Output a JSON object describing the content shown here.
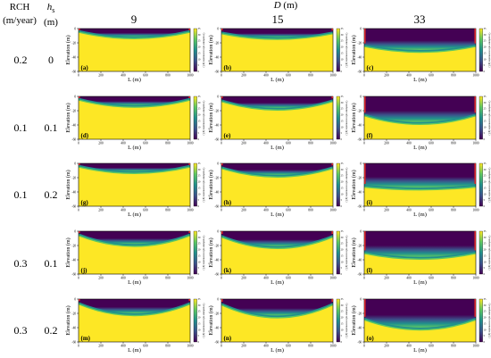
{
  "header": {
    "rch_label": "RCH",
    "rch_unit": "(m/year)",
    "hs_label": "h",
    "hs_sub": "s",
    "hs_unit": "(m)",
    "d_label": "D",
    "d_unit": "(m)",
    "d_values": [
      "9",
      "15",
      "33"
    ]
  },
  "rows": [
    {
      "rch": "0.2",
      "hs": "0"
    },
    {
      "rch": "0.1",
      "hs": "0.1"
    },
    {
      "rch": "0.1",
      "hs": "0.2"
    },
    {
      "rch": "0.3",
      "hs": "0.1"
    },
    {
      "rch": "0.3",
      "hs": "0.2"
    }
  ],
  "colors": {
    "fresh": "#440154",
    "saline": "#fde725",
    "ramp": [
      "#440154",
      "#3b528b",
      "#21918c",
      "#5ec962",
      "#fde725"
    ],
    "boundary": "#d62728"
  },
  "chart_data": {
    "type": "heatmap",
    "description_axes": {
      "xlabel": "L (m)",
      "ylabel": "Elevation (m)",
      "xlim": [
        0,
        1000
      ],
      "ylim": [
        -60,
        0
      ],
      "xticks": [
        0,
        200,
        400,
        600,
        800,
        1000
      ],
      "yticks": [
        0,
        -20,
        -40,
        -60
      ]
    },
    "colorbar": {
      "label": "Groundwater salt concentration (g/L)",
      "ticks": [
        0,
        5,
        10,
        15,
        20,
        25,
        30,
        35
      ]
    },
    "panels": [
      {
        "label": "(a)",
        "rch": 0.2,
        "hs": 0,
        "D": 9,
        "lens_depth": 11,
        "edge_depth": 2
      },
      {
        "label": "(b)",
        "rch": 0.2,
        "hs": 0,
        "D": 15,
        "lens_depth": 12,
        "edge_depth": 4
      },
      {
        "label": "(c)",
        "rch": 0.2,
        "hs": 0,
        "D": 33,
        "lens_depth": 30,
        "edge_depth": 22
      },
      {
        "label": "(d)",
        "rch": 0.1,
        "hs": 0.1,
        "D": 9,
        "lens_depth": 12,
        "edge_depth": 2
      },
      {
        "label": "(e)",
        "rch": 0.1,
        "hs": 0.1,
        "D": 15,
        "lens_depth": 16,
        "edge_depth": 4
      },
      {
        "label": "(f)",
        "rch": 0.1,
        "hs": 0.1,
        "D": 33,
        "lens_depth": 36,
        "edge_depth": 24
      },
      {
        "label": "(g)",
        "rch": 0.1,
        "hs": 0.2,
        "D": 9,
        "lens_depth": 11,
        "edge_depth": 2
      },
      {
        "label": "(h)",
        "rch": 0.1,
        "hs": 0.2,
        "D": 15,
        "lens_depth": 16,
        "edge_depth": 4
      },
      {
        "label": "(i)",
        "rch": 0.1,
        "hs": 0.2,
        "D": 33,
        "lens_depth": 34,
        "edge_depth": 30
      },
      {
        "label": "(j)",
        "rch": 0.3,
        "hs": 0.1,
        "D": 9,
        "lens_depth": 18,
        "edge_depth": 3
      },
      {
        "label": "(k)",
        "rch": 0.3,
        "hs": 0.1,
        "D": 15,
        "lens_depth": 21,
        "edge_depth": 5
      },
      {
        "label": "(l)",
        "rch": 0.3,
        "hs": 0.1,
        "D": 33,
        "lens_depth": 36,
        "edge_depth": 28
      },
      {
        "label": "(m)",
        "rch": 0.3,
        "hs": 0.2,
        "D": 9,
        "lens_depth": 20,
        "edge_depth": 4
      },
      {
        "label": "(n)",
        "rch": 0.3,
        "hs": 0.2,
        "D": 15,
        "lens_depth": 23,
        "edge_depth": 5
      },
      {
        "label": "(o)",
        "rch": 0.3,
        "hs": 0.2,
        "D": 33,
        "lens_depth": 40,
        "edge_depth": 26
      }
    ]
  }
}
